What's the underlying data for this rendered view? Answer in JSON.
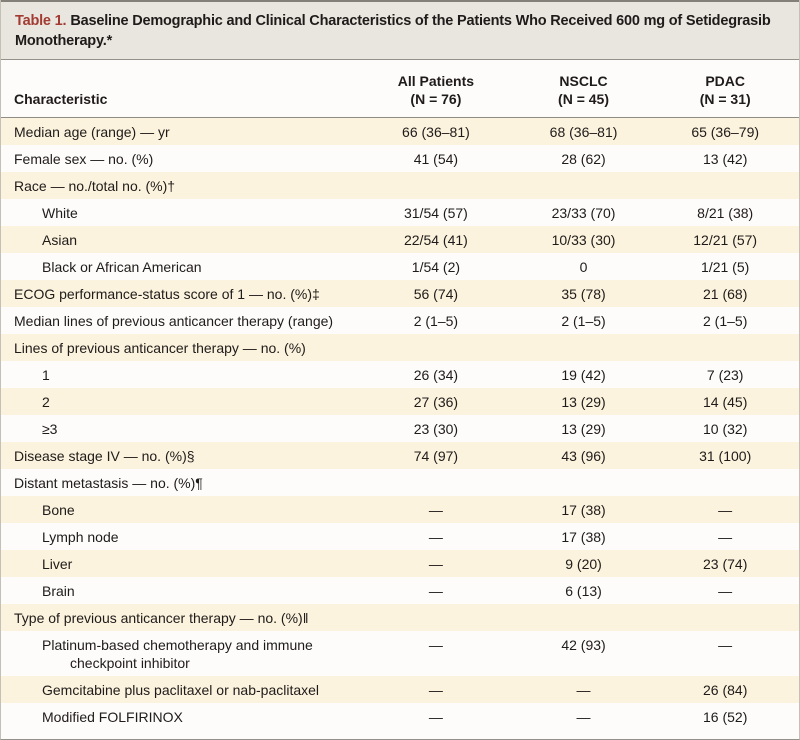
{
  "table": {
    "title_label": "Table 1.",
    "title_text": "Baseline Demographic and Clinical Characteristics of the Patients Who Received 600 mg of Setidegrasib Monotherapy.*",
    "header": {
      "characteristic": "Characteristic",
      "columns": [
        {
          "label": "All Patients",
          "n": "(N = 76)"
        },
        {
          "label": "NSCLC",
          "n": "(N = 45)"
        },
        {
          "label": "PDAC",
          "n": "(N = 31)"
        }
      ]
    },
    "rows": [
      {
        "label": "Median age (range) — yr",
        "indent": 0,
        "shaded": true,
        "values": [
          "66 (36–81)",
          "68 (36–81)",
          "65 (36–79)"
        ]
      },
      {
        "label": "Female sex — no. (%)",
        "indent": 0,
        "shaded": false,
        "values": [
          "41 (54)",
          "28 (62)",
          "13 (42)"
        ]
      },
      {
        "label": "Race — no./total no. (%)†",
        "indent": 0,
        "shaded": true,
        "values": [
          "",
          "",
          ""
        ]
      },
      {
        "label": "White",
        "indent": 1,
        "shaded": false,
        "values": [
          "31/54 (57)",
          "23/33 (70)",
          "8/21 (38)"
        ]
      },
      {
        "label": "Asian",
        "indent": 1,
        "shaded": true,
        "values": [
          "22/54 (41)",
          "10/33 (30)",
          "12/21 (57)"
        ]
      },
      {
        "label": "Black or African American",
        "indent": 1,
        "shaded": false,
        "values": [
          "1/54 (2)",
          "0",
          "1/21 (5)"
        ]
      },
      {
        "label": "ECOG performance-status score of 1 — no. (%)‡",
        "indent": 0,
        "shaded": true,
        "values": [
          "56 (74)",
          "35 (78)",
          "21 (68)"
        ]
      },
      {
        "label": "Median lines of previous anticancer therapy (range)",
        "indent": 0,
        "shaded": false,
        "values": [
          "2 (1–5)",
          "2 (1–5)",
          "2 (1–5)"
        ]
      },
      {
        "label": "Lines of previous anticancer therapy — no. (%)",
        "indent": 0,
        "shaded": true,
        "values": [
          "",
          "",
          ""
        ]
      },
      {
        "label": "1",
        "indent": 1,
        "shaded": false,
        "values": [
          "26 (34)",
          "19 (42)",
          "7 (23)"
        ]
      },
      {
        "label": "2",
        "indent": 1,
        "shaded": true,
        "values": [
          "27 (36)",
          "13 (29)",
          "14 (45)"
        ]
      },
      {
        "label": "≥3",
        "indent": 1,
        "shaded": false,
        "values": [
          "23 (30)",
          "13 (29)",
          "10 (32)"
        ]
      },
      {
        "label": "Disease stage IV — no. (%)§",
        "indent": 0,
        "shaded": true,
        "values": [
          "74 (97)",
          "43 (96)",
          "31 (100)"
        ]
      },
      {
        "label": "Distant metastasis — no. (%)¶",
        "indent": 0,
        "shaded": false,
        "values": [
          "",
          "",
          ""
        ]
      },
      {
        "label": "Bone",
        "indent": 1,
        "shaded": true,
        "values": [
          "—",
          "17 (38)",
          "—"
        ]
      },
      {
        "label": "Lymph node",
        "indent": 1,
        "shaded": false,
        "values": [
          "—",
          "17 (38)",
          "—"
        ]
      },
      {
        "label": "Liver",
        "indent": 1,
        "shaded": true,
        "values": [
          "—",
          "9 (20)",
          "23 (74)"
        ]
      },
      {
        "label": "Brain",
        "indent": 1,
        "shaded": false,
        "values": [
          "—",
          "6 (13)",
          "—"
        ]
      },
      {
        "label": "Type of previous anticancer therapy — no. (%)‖",
        "indent": 0,
        "shaded": true,
        "values": [
          "",
          "",
          ""
        ]
      },
      {
        "label": "Platinum-based chemotherapy and immune checkpoint inhibitor",
        "indent": 1,
        "shaded": false,
        "values": [
          "—",
          "42 (93)",
          "—"
        ]
      },
      {
        "label": "Gemcitabine plus paclitaxel or nab-paclitaxel",
        "indent": 1,
        "shaded": true,
        "values": [
          "—",
          "—",
          "26 (84)"
        ]
      },
      {
        "label": "Modified FOLFIRINOX",
        "indent": 1,
        "shaded": false,
        "values": [
          "—",
          "—",
          "16 (52)"
        ]
      }
    ],
    "colors": {
      "accent_red": "#A23B32",
      "shaded_row": "#FBF3DD",
      "title_bar_bg": "#E9E6DF",
      "rule": "#8F8C85",
      "text": "#1F1B1A"
    }
  }
}
